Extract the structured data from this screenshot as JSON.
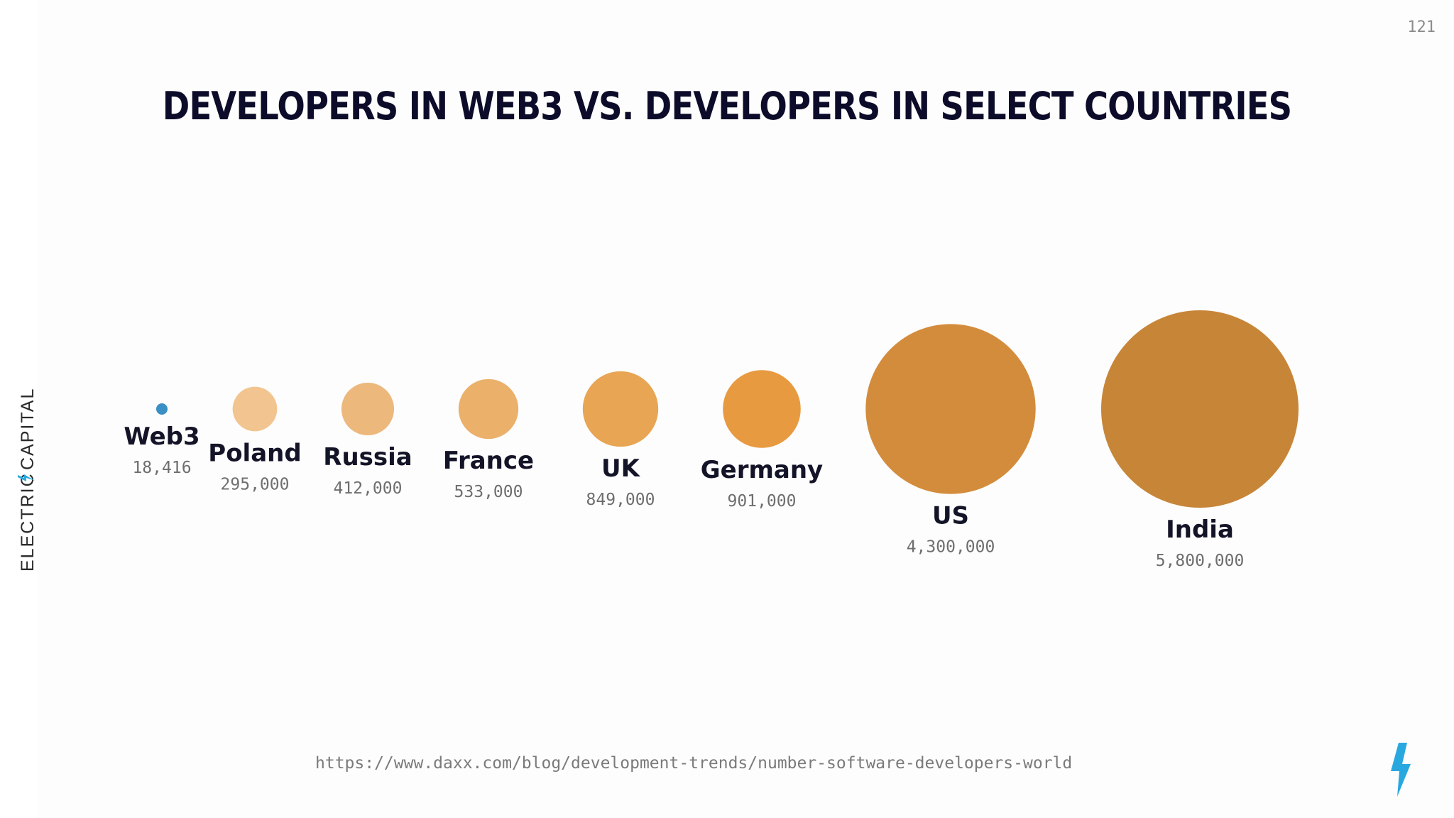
{
  "page_number": "121",
  "title": "DEVELOPERS IN WEB3 VS. DEVELOPERS IN SELECT COUNTRIES",
  "brand": {
    "wordmark_left": "ELECTRIC",
    "wordmark_right": "CAPITAL",
    "icon": "lightning-bolt-icon",
    "accent_color": "#29a8e0"
  },
  "source": "https://www.daxx.com/blog/development-trends/number-software-developers-world",
  "chart_data": {
    "type": "bubble",
    "title": "DEVELOPERS IN WEB3 VS. DEVELOPERS IN SELECT COUNTRIES",
    "categories": [
      "Web3",
      "Poland",
      "Russia",
      "France",
      "UK",
      "Germany",
      "US",
      "India"
    ],
    "values": [
      18416,
      295000,
      412000,
      533000,
      849000,
      901000,
      4300000,
      5800000
    ],
    "value_labels": [
      "18,416",
      "295,000",
      "412,000",
      "533,000",
      "849,000",
      "901,000",
      "4,300,000",
      "5,800,000"
    ],
    "colors": [
      "#3a8fc4",
      "#f2c590",
      "#ecb87c",
      "#ebb06a",
      "#e8a553",
      "#e89a40",
      "#d38c3c",
      "#c78538"
    ],
    "legend": "none",
    "grid": false
  }
}
